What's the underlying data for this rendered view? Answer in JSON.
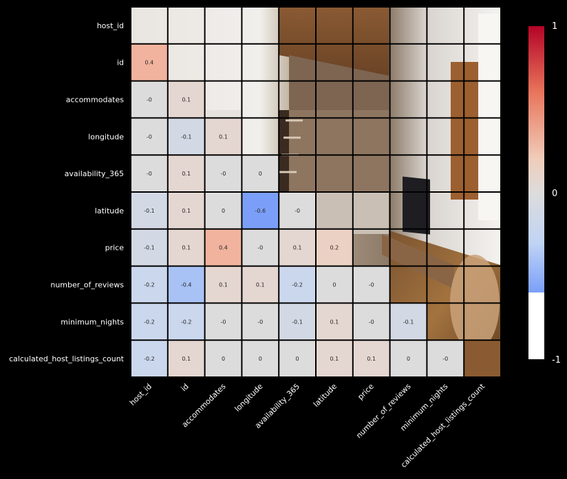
{
  "chart_data": {
    "type": "heatmap",
    "title": "",
    "xlabel": "",
    "ylabel": "",
    "variables": [
      "host_id",
      "id",
      "accommodates",
      "longitude",
      "availability_365",
      "latitude",
      "price",
      "number_of_reviews",
      "minimum_nights",
      "calculated_host_listings_count"
    ],
    "masked": "upper-triangle-and-diagonal",
    "annotations": true,
    "colormap": "coolwarm",
    "colorbar": {
      "min": -1,
      "max": 1,
      "ticks": [
        "1",
        "0",
        "-1"
      ],
      "placement": "right"
    },
    "background_image": "interior-photo (loft room with wooden beams and stairs)",
    "cells": [
      {
        "row": 1,
        "col": 0,
        "value": 0.4,
        "label": "0.4"
      },
      {
        "row": 2,
        "col": 0,
        "value": 0,
        "label": "-0"
      },
      {
        "row": 2,
        "col": 1,
        "value": 0.1,
        "label": "0.1"
      },
      {
        "row": 3,
        "col": 0,
        "value": 0,
        "label": "-0"
      },
      {
        "row": 3,
        "col": 1,
        "value": -0.1,
        "label": "-0.1"
      },
      {
        "row": 3,
        "col": 2,
        "value": 0.1,
        "label": "0.1"
      },
      {
        "row": 4,
        "col": 0,
        "value": 0,
        "label": "-0"
      },
      {
        "row": 4,
        "col": 1,
        "value": 0.1,
        "label": "0.1"
      },
      {
        "row": 4,
        "col": 2,
        "value": 0,
        "label": "-0"
      },
      {
        "row": 4,
        "col": 3,
        "value": 0,
        "label": "0"
      },
      {
        "row": 5,
        "col": 0,
        "value": -0.1,
        "label": "-0.1"
      },
      {
        "row": 5,
        "col": 1,
        "value": 0.1,
        "label": "0.1"
      },
      {
        "row": 5,
        "col": 2,
        "value": 0,
        "label": "0"
      },
      {
        "row": 5,
        "col": 3,
        "value": -0.6,
        "label": "-0.6"
      },
      {
        "row": 5,
        "col": 4,
        "value": 0,
        "label": "-0"
      },
      {
        "row": 6,
        "col": 0,
        "value": -0.1,
        "label": "-0.1"
      },
      {
        "row": 6,
        "col": 1,
        "value": 0.1,
        "label": "0.1"
      },
      {
        "row": 6,
        "col": 2,
        "value": 0.4,
        "label": "0.4"
      },
      {
        "row": 6,
        "col": 3,
        "value": 0,
        "label": "-0"
      },
      {
        "row": 6,
        "col": 4,
        "value": 0.1,
        "label": "0.1"
      },
      {
        "row": 6,
        "col": 5,
        "value": 0.2,
        "label": "0.2"
      },
      {
        "row": 7,
        "col": 0,
        "value": -0.2,
        "label": "-0.2"
      },
      {
        "row": 7,
        "col": 1,
        "value": -0.4,
        "label": "-0.4"
      },
      {
        "row": 7,
        "col": 2,
        "value": 0.1,
        "label": "0.1"
      },
      {
        "row": 7,
        "col": 3,
        "value": 0.1,
        "label": "0.1"
      },
      {
        "row": 7,
        "col": 4,
        "value": -0.2,
        "label": "-0.2"
      },
      {
        "row": 7,
        "col": 5,
        "value": 0,
        "label": "0"
      },
      {
        "row": 7,
        "col": 6,
        "value": 0,
        "label": "-0"
      },
      {
        "row": 8,
        "col": 0,
        "value": -0.2,
        "label": "-0.2"
      },
      {
        "row": 8,
        "col": 1,
        "value": -0.2,
        "label": "-0.2"
      },
      {
        "row": 8,
        "col": 2,
        "value": 0,
        "label": "-0"
      },
      {
        "row": 8,
        "col": 3,
        "value": 0,
        "label": "-0"
      },
      {
        "row": 8,
        "col": 4,
        "value": -0.1,
        "label": "-0.1"
      },
      {
        "row": 8,
        "col": 5,
        "value": 0.1,
        "label": "0.1"
      },
      {
        "row": 8,
        "col": 6,
        "value": 0,
        "label": "-0"
      },
      {
        "row": 8,
        "col": 7,
        "value": -0.1,
        "label": "-0.1"
      },
      {
        "row": 9,
        "col": 0,
        "value": -0.2,
        "label": "-0.2"
      },
      {
        "row": 9,
        "col": 1,
        "value": 0.1,
        "label": "0.1"
      },
      {
        "row": 9,
        "col": 2,
        "value": 0,
        "label": "0"
      },
      {
        "row": 9,
        "col": 3,
        "value": 0,
        "label": "0"
      },
      {
        "row": 9,
        "col": 4,
        "value": 0,
        "label": "0"
      },
      {
        "row": 9,
        "col": 5,
        "value": 0.1,
        "label": "0.1"
      },
      {
        "row": 9,
        "col": 6,
        "value": 0.1,
        "label": "0.1"
      },
      {
        "row": 9,
        "col": 7,
        "value": 0,
        "label": "0"
      },
      {
        "row": 9,
        "col": 8,
        "value": 0,
        "label": "-0"
      }
    ]
  }
}
